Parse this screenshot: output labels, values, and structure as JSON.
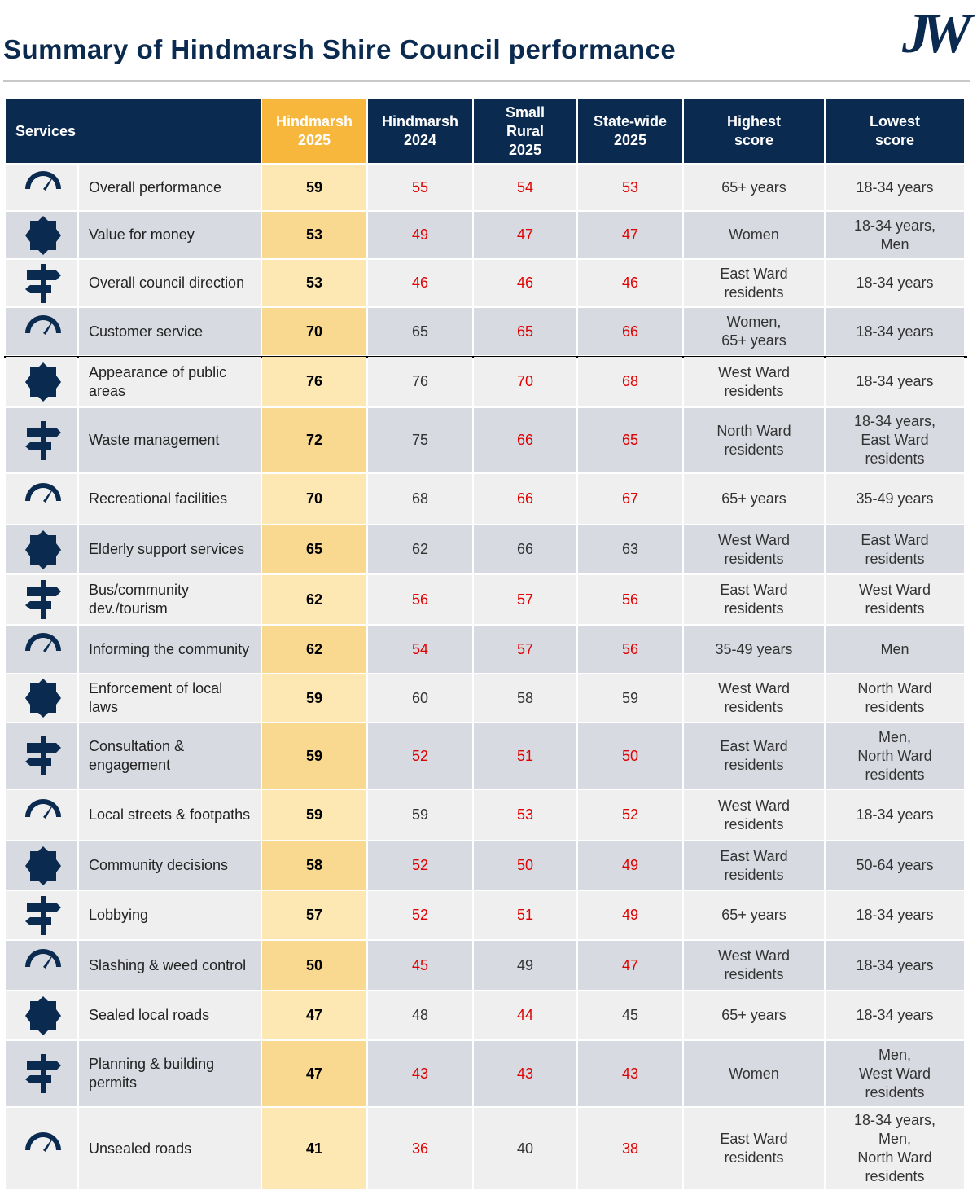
{
  "header": {
    "title": "Summary of Hindmarsh Shire Council performance",
    "logo": "JW"
  },
  "table": {
    "columns": [
      "Services",
      "Hindmarsh\n2025",
      "Hindmarsh\n2024",
      "Small\nRural\n2025",
      "State-wide\n2025",
      "Highest\nscore",
      "Lowest\nscore"
    ],
    "rows": [
      {
        "service": "Overall performance",
        "values": [
          59,
          55,
          54,
          53
        ],
        "colors": [
          "#000000",
          "#e00000",
          "#e00000",
          "#e00000"
        ],
        "highest": "65+ years",
        "lowest": "18-34 years"
      },
      {
        "service": "Value for money",
        "values": [
          53,
          49,
          47,
          47
        ],
        "colors": [
          "#000000",
          "#e00000",
          "#e00000",
          "#e00000"
        ],
        "highest": "Women",
        "lowest": "18-34 years,\nMen"
      },
      {
        "service": "Overall council direction",
        "values": [
          53,
          46,
          46,
          46
        ],
        "colors": [
          "#000000",
          "#e00000",
          "#e00000",
          "#e00000"
        ],
        "highest": "East Ward\nresidents",
        "lowest": "18-34 years"
      },
      {
        "service": "Customer service",
        "values": [
          70,
          65,
          65,
          66
        ],
        "colors": [
          "#000000",
          "#333333",
          "#e00000",
          "#e00000"
        ],
        "highest": "Women,\n65+ years",
        "lowest": "18-34 years"
      },
      {
        "service": "Appearance of public\nareas",
        "values": [
          76,
          76,
          70,
          68
        ],
        "colors": [
          "#000000",
          "#333333",
          "#e00000",
          "#e00000"
        ],
        "highest": "West Ward\nresidents",
        "lowest": "18-34 years"
      },
      {
        "service": "Waste management",
        "values": [
          72,
          75,
          66,
          65
        ],
        "colors": [
          "#000000",
          "#333333",
          "#e00000",
          "#e00000"
        ],
        "highest": "North Ward\nresidents",
        "lowest": "18-34 years,\nEast Ward\nresidents"
      },
      {
        "service": "Recreational facilities",
        "values": [
          70,
          68,
          66,
          67
        ],
        "colors": [
          "#000000",
          "#333333",
          "#e00000",
          "#e00000"
        ],
        "highest": "65+ years",
        "lowest": "35-49 years"
      },
      {
        "service": "Elderly support services",
        "values": [
          65,
          62,
          66,
          63
        ],
        "colors": [
          "#000000",
          "#333333",
          "#333333",
          "#333333"
        ],
        "highest": "West Ward\nresidents",
        "lowest": "East Ward\nresidents"
      },
      {
        "service": "Bus/community\ndev./tourism",
        "values": [
          62,
          56,
          57,
          56
        ],
        "colors": [
          "#000000",
          "#e00000",
          "#e00000",
          "#e00000"
        ],
        "highest": "East Ward\nresidents",
        "lowest": "West Ward\nresidents"
      },
      {
        "service": "Informing the community",
        "values": [
          62,
          54,
          57,
          56
        ],
        "colors": [
          "#000000",
          "#e00000",
          "#e00000",
          "#e00000"
        ],
        "highest": "35-49 years",
        "lowest": "Men"
      },
      {
        "service": "Enforcement of local\nlaws",
        "values": [
          59,
          60,
          58,
          59
        ],
        "colors": [
          "#000000",
          "#333333",
          "#333333",
          "#333333"
        ],
        "highest": "West Ward\nresidents",
        "lowest": "North Ward\nresidents"
      },
      {
        "service": "Consultation &\nengagement",
        "values": [
          59,
          52,
          51,
          50
        ],
        "colors": [
          "#000000",
          "#e00000",
          "#e00000",
          "#e00000"
        ],
        "highest": "East Ward\nresidents",
        "lowest": "Men,\nNorth Ward\nresidents"
      },
      {
        "service": "Local streets & footpaths",
        "values": [
          59,
          59,
          53,
          52
        ],
        "colors": [
          "#000000",
          "#333333",
          "#e00000",
          "#e00000"
        ],
        "highest": "West Ward\nresidents",
        "lowest": "18-34 years"
      },
      {
        "service": "Community decisions",
        "values": [
          58,
          52,
          50,
          49
        ],
        "colors": [
          "#000000",
          "#e00000",
          "#e00000",
          "#e00000"
        ],
        "highest": "East Ward\nresidents",
        "lowest": "50-64 years"
      },
      {
        "service": "Lobbying",
        "values": [
          57,
          52,
          51,
          49
        ],
        "colors": [
          "#000000",
          "#e00000",
          "#e00000",
          "#e00000"
        ],
        "highest": "65+ years",
        "lowest": "18-34 years"
      },
      {
        "service": "Slashing & weed control",
        "values": [
          50,
          45,
          49,
          47
        ],
        "colors": [
          "#000000",
          "#e00000",
          "#333333",
          "#e00000"
        ],
        "highest": "West Ward\nresidents",
        "lowest": "18-34 years"
      },
      {
        "service": "Sealed local roads",
        "values": [
          47,
          48,
          44,
          45
        ],
        "colors": [
          "#000000",
          "#333333",
          "#e00000",
          "#333333"
        ],
        "highest": "65+ years",
        "lowest": "18-34 years"
      },
      {
        "service": "Planning & building\npermits",
        "values": [
          47,
          43,
          43,
          43
        ],
        "colors": [
          "#000000",
          "#e00000",
          "#e00000",
          "#e00000"
        ],
        "highest": "Women",
        "lowest": "Men,\nWest Ward\nresidents"
      },
      {
        "service": "Unsealed roads",
        "values": [
          41,
          36,
          40,
          38
        ],
        "colors": [
          "#000000",
          "#e00000",
          "#333333",
          "#e00000"
        ],
        "highest": "East Ward\nresidents",
        "lowest": "18-34 years,\nMen,\nNorth Ward\nresidents"
      }
    ]
  }
}
